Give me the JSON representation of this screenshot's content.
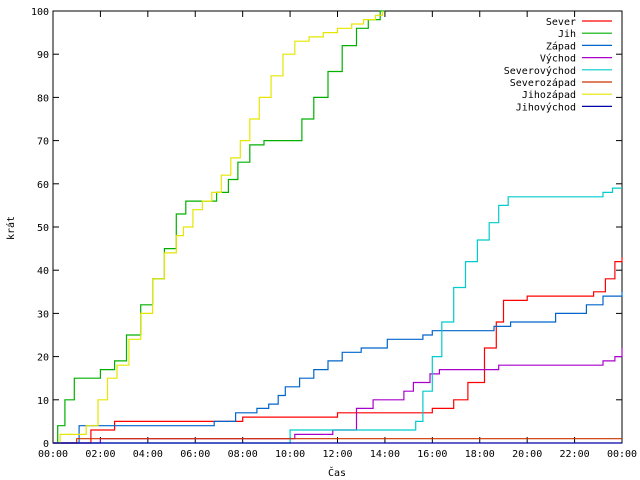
{
  "chart_data": {
    "type": "line",
    "title": "",
    "xlabel": "Čas",
    "ylabel": "krát",
    "xlim": [
      0,
      24
    ],
    "ylim": [
      0,
      100
    ],
    "x_ticks": [
      0,
      2,
      4,
      6,
      8,
      10,
      12,
      14,
      16,
      18,
      20,
      22,
      24
    ],
    "x_tick_labels": [
      "00:00",
      "02:00",
      "04:00",
      "06:00",
      "08:00",
      "10:00",
      "12:00",
      "14:00",
      "16:00",
      "18:00",
      "20:00",
      "22:00",
      "00:00"
    ],
    "y_ticks": [
      0,
      10,
      20,
      30,
      40,
      50,
      60,
      70,
      80,
      90,
      100
    ],
    "y_tick_labels": [
      "0",
      "10",
      "20",
      "30",
      "40",
      "50",
      "60",
      "70",
      "80",
      "90",
      "100"
    ],
    "grid": false,
    "legend_position": "top-right",
    "series": [
      {
        "name": "Sever",
        "color": "#ff0000",
        "x": [
          0.0,
          0.9,
          1.6,
          2.6,
          6.0,
          8.0,
          12.0,
          15.0,
          16.0,
          16.9,
          17.5,
          18.2,
          18.7,
          19.0,
          20.0,
          22.0,
          22.8,
          23.3,
          23.7,
          24.0
        ],
        "y": [
          0,
          0,
          3,
          5,
          5,
          6,
          7,
          7,
          8,
          10,
          14,
          22,
          28,
          33,
          34,
          34,
          35,
          38,
          42,
          43
        ]
      },
      {
        "name": "Jih",
        "color": "#00b000",
        "x": [
          0.0,
          0.2,
          0.5,
          0.9,
          1.5,
          2.0,
          2.6,
          3.1,
          3.7,
          4.2,
          4.7,
          5.2,
          5.6,
          6.0,
          6.5,
          6.9,
          7.4,
          7.8,
          8.3,
          8.9,
          9.5,
          10.0,
          10.5,
          11.0,
          11.6,
          12.2,
          12.8,
          13.3,
          13.8,
          14.0
        ],
        "y": [
          0,
          4,
          10,
          15,
          15,
          17,
          19,
          25,
          32,
          38,
          45,
          53,
          56,
          56,
          56,
          58,
          61,
          65,
          69,
          70,
          70,
          70,
          75,
          80,
          86,
          92,
          96,
          98,
          100,
          100
        ]
      },
      {
        "name": "Západ",
        "color": "#0066cc",
        "x": [
          0.0,
          0.9,
          1.1,
          5.2,
          6.8,
          7.7,
          8.6,
          9.1,
          9.5,
          9.8,
          10.4,
          11.0,
          11.6,
          12.2,
          13.0,
          14.1,
          15.6,
          16.0,
          17.8,
          18.6,
          19.3,
          20.0,
          21.2,
          22.5,
          23.2,
          24.0
        ],
        "y": [
          0,
          0,
          4,
          4,
          5,
          7,
          8,
          9,
          11,
          13,
          15,
          17,
          19,
          21,
          22,
          24,
          25,
          26,
          26,
          27,
          28,
          28,
          30,
          32,
          34,
          35
        ]
      },
      {
        "name": "Východ",
        "color": "#aa00cc",
        "x": [
          0.0,
          1.2,
          2.0,
          9.5,
          10.2,
          11.8,
          12.8,
          13.5,
          14.8,
          15.2,
          15.9,
          16.3,
          18.0,
          18.8,
          20.0,
          23.2,
          23.7,
          24.0
        ],
        "y": [
          0,
          0,
          1,
          1,
          2,
          3,
          8,
          10,
          12,
          14,
          16,
          17,
          17,
          18,
          18,
          19,
          20,
          22
        ]
      },
      {
        "name": "Severovýchod",
        "color": "#00cccc",
        "x": [
          0.0,
          3.0,
          10.0,
          15.1,
          15.3,
          15.6,
          16.0,
          16.4,
          16.9,
          17.4,
          17.9,
          18.4,
          18.8,
          19.2,
          19.6,
          22.7,
          23.2,
          23.6,
          24.0
        ],
        "y": [
          0,
          0,
          3,
          3,
          5,
          12,
          20,
          28,
          36,
          42,
          47,
          51,
          55,
          57,
          57,
          57,
          58,
          59,
          59
        ]
      },
      {
        "name": "Severozápad",
        "color": "#cc3300",
        "x": [
          0.0,
          0.8,
          1.0,
          24.0
        ],
        "y": [
          0,
          0,
          1,
          1
        ]
      },
      {
        "name": "Jihozápad",
        "color": "#e6e600",
        "x": [
          0.0,
          0.3,
          0.7,
          1.0,
          1.4,
          1.9,
          2.3,
          2.7,
          3.2,
          3.7,
          4.2,
          4.7,
          5.2,
          5.5,
          5.9,
          6.3,
          6.7,
          7.1,
          7.5,
          7.9,
          8.3,
          8.7,
          9.2,
          9.7,
          10.2,
          10.8,
          11.4,
          12.0,
          12.6,
          13.1,
          13.6,
          13.9
        ],
        "y": [
          0,
          2,
          2,
          2,
          4,
          10,
          15,
          18,
          24,
          30,
          38,
          44,
          48,
          50,
          54,
          56,
          58,
          62,
          66,
          70,
          75,
          80,
          85,
          90,
          93,
          94,
          95,
          96,
          97,
          98,
          99,
          100
        ]
      },
      {
        "name": "Jihovýchod",
        "color": "#0000aa",
        "x": [
          0.0,
          9.5,
          10.0,
          24.0
        ],
        "y": [
          0,
          0,
          0,
          0
        ]
      }
    ]
  }
}
